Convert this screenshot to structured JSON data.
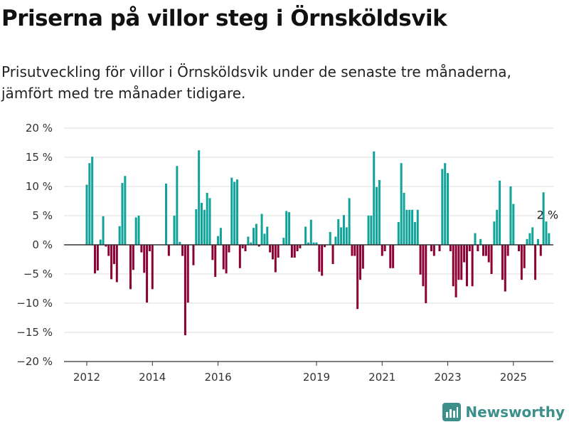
{
  "header": {
    "title": "Priserna på villor steg i Örnsköldsvik",
    "subtitle": "Prisutveckling för villor i Örnsköldsvik under de senaste tre månaderna, jämfört med tre månader tidigare."
  },
  "brand": {
    "name": "Newsworthy",
    "color": "#3c8f8a"
  },
  "chart_data": {
    "type": "bar",
    "title": "Priserna på villor steg i Örnsköldsvik",
    "xlabel": "",
    "ylabel": "",
    "unit": "%",
    "ylim": [
      -20,
      20
    ],
    "yticks": [
      20,
      15,
      10,
      5,
      0,
      -5,
      -10,
      -15,
      -20
    ],
    "ytick_labels": [
      "20 %",
      "15 %",
      "10 %",
      "5 %",
      "0 %",
      "−5 %",
      "−10 %",
      "−15 %",
      "−20 %"
    ],
    "xticks": [
      "2012",
      "2014",
      "2016",
      "2019",
      "2021",
      "2023",
      "2025"
    ],
    "x_start": "2012-01",
    "grid": true,
    "positive_color": "#0fa39a",
    "negative_color": "#8b0035",
    "last_value_label": "2 %",
    "values": [
      10.3,
      14.0,
      15.1,
      -4.9,
      -4.4,
      0.9,
      4.9,
      -0.3,
      -1.9,
      -5.9,
      -3.3,
      -6.4,
      3.2,
      10.6,
      11.8,
      0.0,
      -7.6,
      -4.3,
      4.7,
      5.0,
      -1.3,
      -4.8,
      -9.9,
      -1.1,
      -7.6,
      0.0,
      0.0,
      0.0,
      0.0,
      10.5,
      -1.9,
      0.0,
      5.0,
      13.5,
      0.5,
      -1.9,
      -15.5,
      -9.9,
      0.0,
      -3.5,
      6.1,
      16.2,
      7.2,
      6.0,
      8.9,
      8.0,
      -2.6,
      -5.5,
      1.5,
      2.9,
      -4.2,
      -4.9,
      -1.3,
      11.5,
      10.8,
      11.2,
      -4.0,
      -0.6,
      -1.1,
      1.4,
      0.4,
      2.9,
      3.6,
      -0.3,
      5.3,
      1.9,
      3.1,
      -1.3,
      -2.5,
      -4.7,
      -2.2,
      0.0,
      1.2,
      5.8,
      5.6,
      -2.2,
      -2.2,
      -1.1,
      -0.6,
      0.0,
      3.1,
      0.4,
      4.3,
      0.4,
      0.4,
      -4.6,
      -5.3,
      -0.4,
      0.0,
      2.2,
      -3.3,
      1.4,
      4.4,
      3.0,
      5.1,
      3.0,
      8.0,
      -1.9,
      -1.9,
      -11.0,
      -6.0,
      -4.1,
      0.0,
      5.0,
      5.0,
      16.0,
      9.9,
      11.1,
      -1.9,
      -1.1,
      0.0,
      -4.0,
      -4.0,
      0.0,
      3.9,
      14.0,
      8.9,
      6.0,
      6.0,
      6.0,
      3.9,
      6.0,
      -5.1,
      -7.1,
      -10.0,
      0.0,
      -1.1,
      -1.9,
      0.0,
      -1.1,
      13.0,
      14.0,
      12.3,
      -1.1,
      -7.1,
      -9.0,
      -6.0,
      -6.0,
      -3.0,
      -7.1,
      -1.1,
      -7.1,
      2.0,
      -1.1,
      1.0,
      -1.9,
      -1.9,
      -3.0,
      -5.0,
      4.0,
      6.0,
      11.0,
      -6.0,
      -8.0,
      -1.9,
      10.0,
      7.0,
      0.0,
      -1.1,
      -6.0,
      -4.0,
      1.0,
      2.0,
      3.0,
      -6.0,
      1.0,
      -1.9,
      9.0,
      4.0,
      2.0
    ]
  }
}
